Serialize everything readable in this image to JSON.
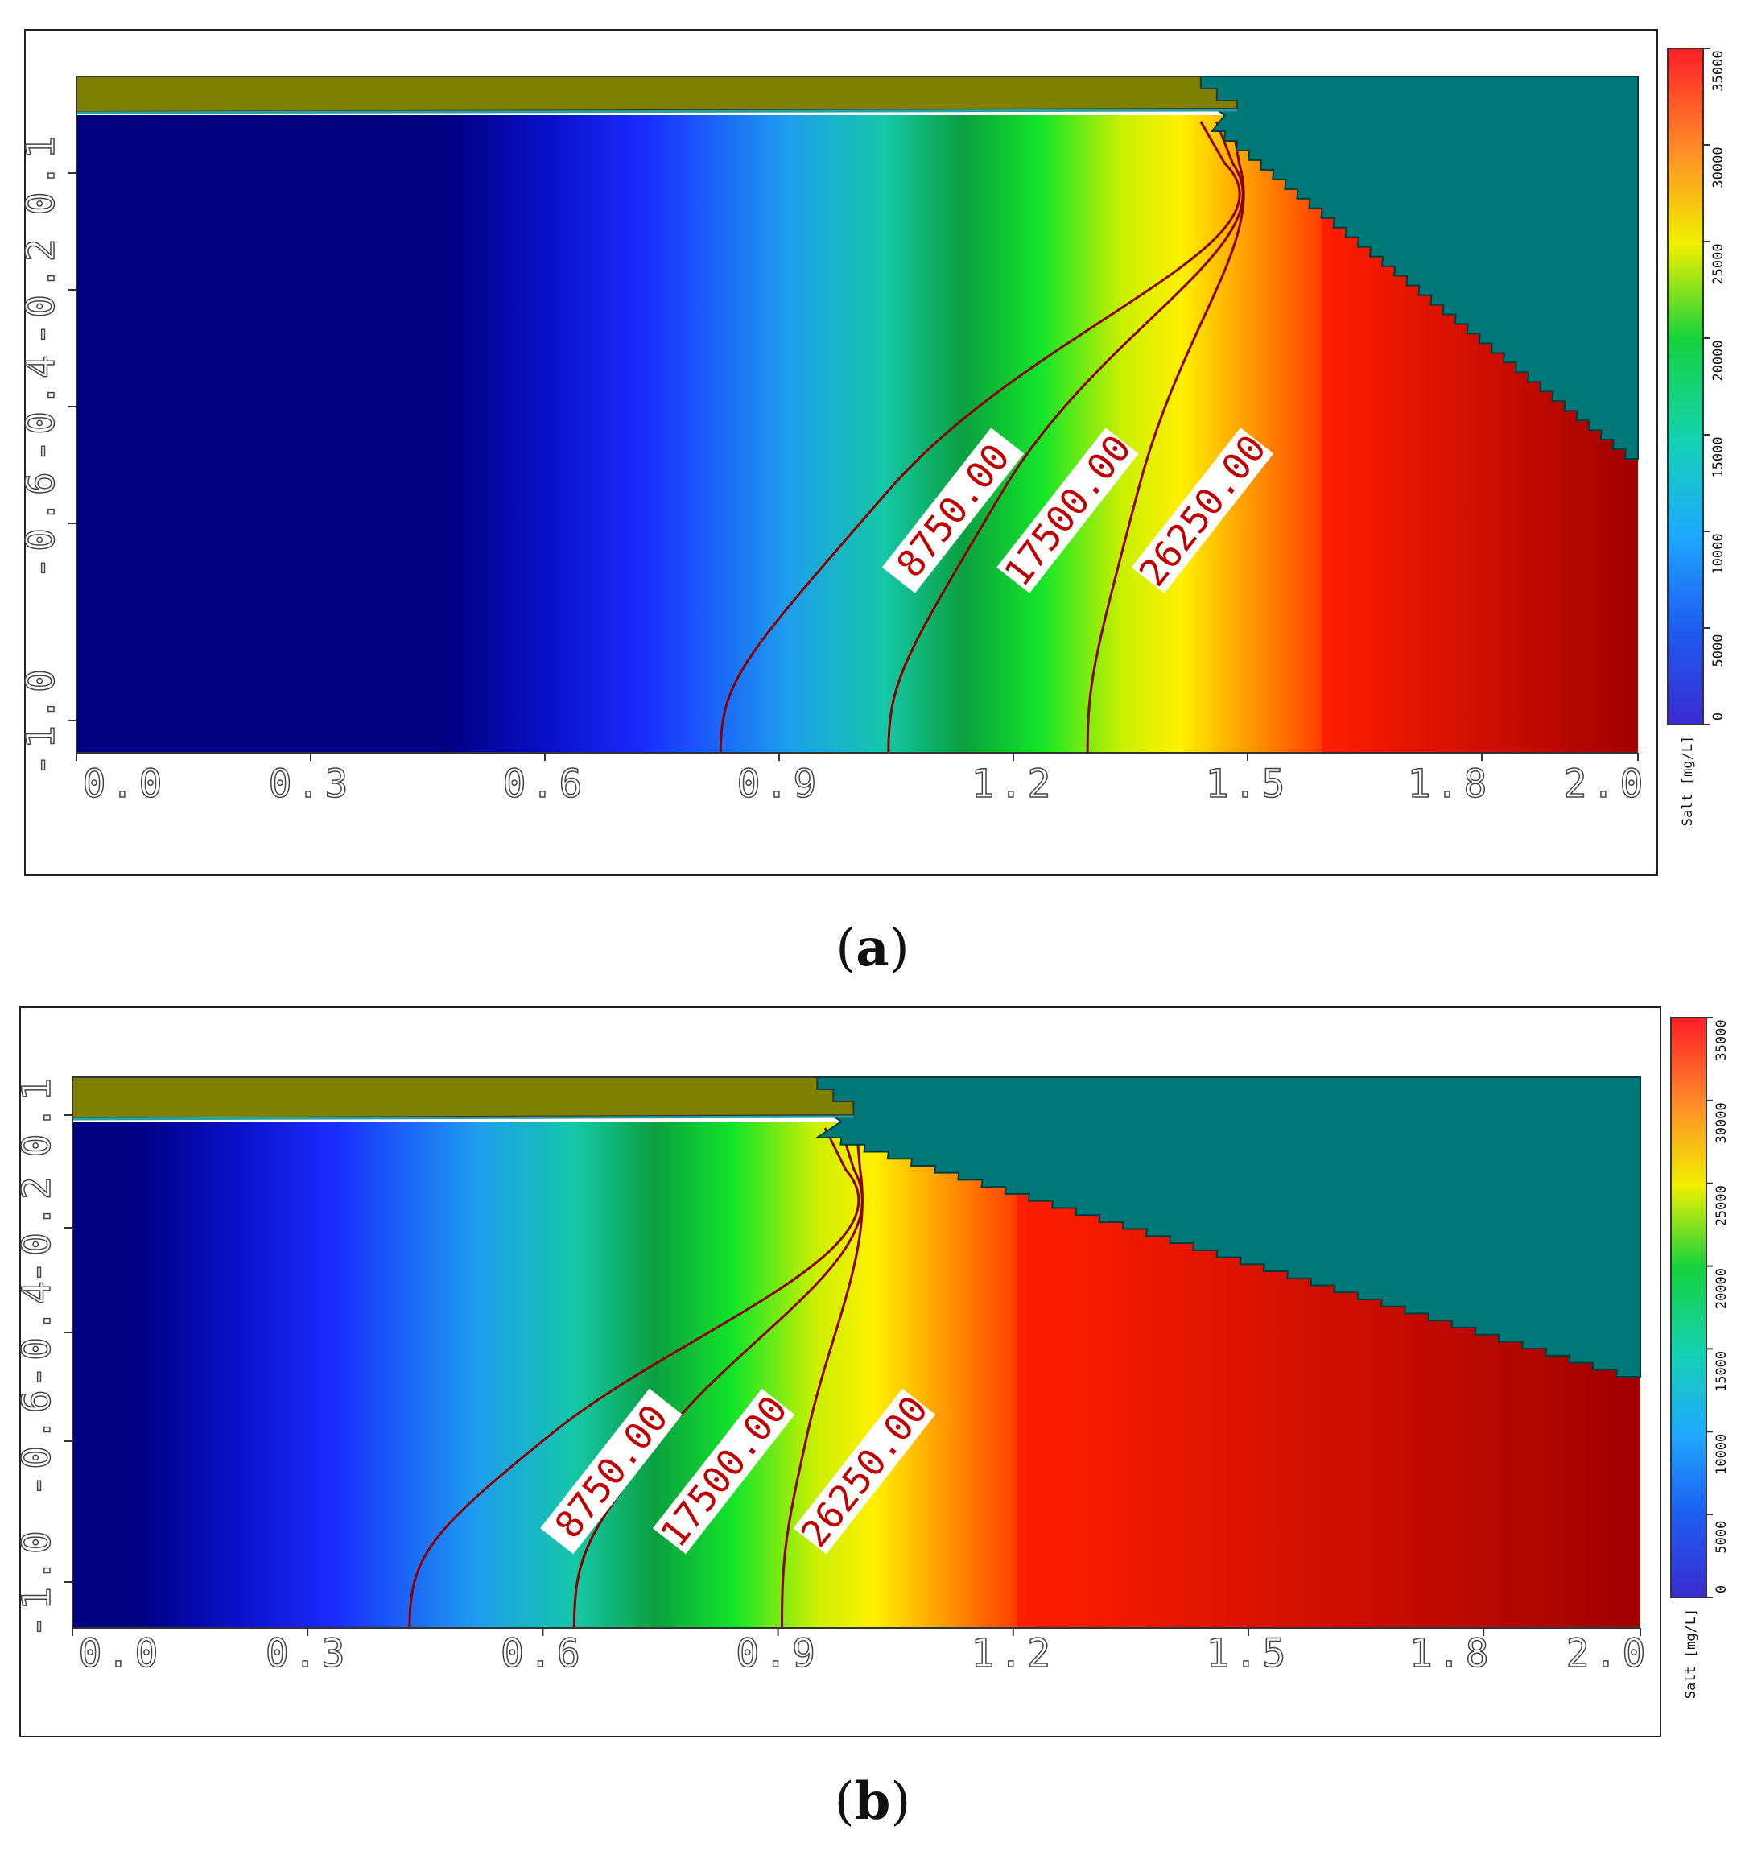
{
  "chart_data": [
    {
      "type": "heatmap",
      "panel_label": "a",
      "colorbar": {
        "title": "Salt [mg/L]",
        "ticks": [
          "0",
          "5000",
          "10000",
          "15000",
          "20000",
          "25000",
          "30000",
          "35000"
        ],
        "range": [
          0,
          35000
        ]
      },
      "x_ticks": [
        "0.0",
        "0.3",
        "0.6",
        "0.9",
        "1.2",
        "1.5",
        "1.8",
        "2.0"
      ],
      "y_ticks": [
        "-1.0",
        "-0.6",
        "-0.4",
        "-0.2",
        "0.1"
      ],
      "xlim": [
        0.0,
        2.0
      ],
      "contours": [
        {
          "label": "8750.00",
          "value": 8750,
          "bottom_x": 0.825,
          "top_x": 1.44
        },
        {
          "label": "17500.00",
          "value": 17500,
          "bottom_x": 1.04,
          "top_x": 1.46
        },
        {
          "label": "26250.00",
          "value": 26250,
          "bottom_x": 1.295,
          "top_x": 1.48
        }
      ],
      "toe_x": 1.44,
      "sea_boundary_bottom_x": 1.99
    },
    {
      "type": "heatmap",
      "panel_label": "b",
      "colorbar": {
        "title": "Salt [mg/L]",
        "ticks": [
          "0",
          "5000",
          "10000",
          "15000",
          "20000",
          "25000",
          "30000",
          "35000"
        ],
        "range": [
          0,
          35000
        ]
      },
      "x_ticks": [
        "0.0",
        "0.3",
        "0.6",
        "0.9",
        "1.2",
        "1.5",
        "1.8",
        "2.0"
      ],
      "y_ticks": [
        "-1.0",
        "-0.6",
        "-0.4",
        "-0.2",
        "0.1"
      ],
      "xlim": [
        0.0,
        2.0
      ],
      "contours": [
        {
          "label": "8750.00",
          "value": 8750,
          "bottom_x": 0.43,
          "top_x": 0.96
        },
        {
          "label": "17500.00",
          "value": 17500,
          "bottom_x": 0.64,
          "top_x": 0.98
        },
        {
          "label": "26250.00",
          "value": 26250,
          "bottom_x": 0.905,
          "top_x": 1.0
        }
      ],
      "toe_x": 0.95,
      "sea_boundary_bottom_x": 1.99
    }
  ],
  "captions": {
    "a": "a",
    "b": "b"
  }
}
